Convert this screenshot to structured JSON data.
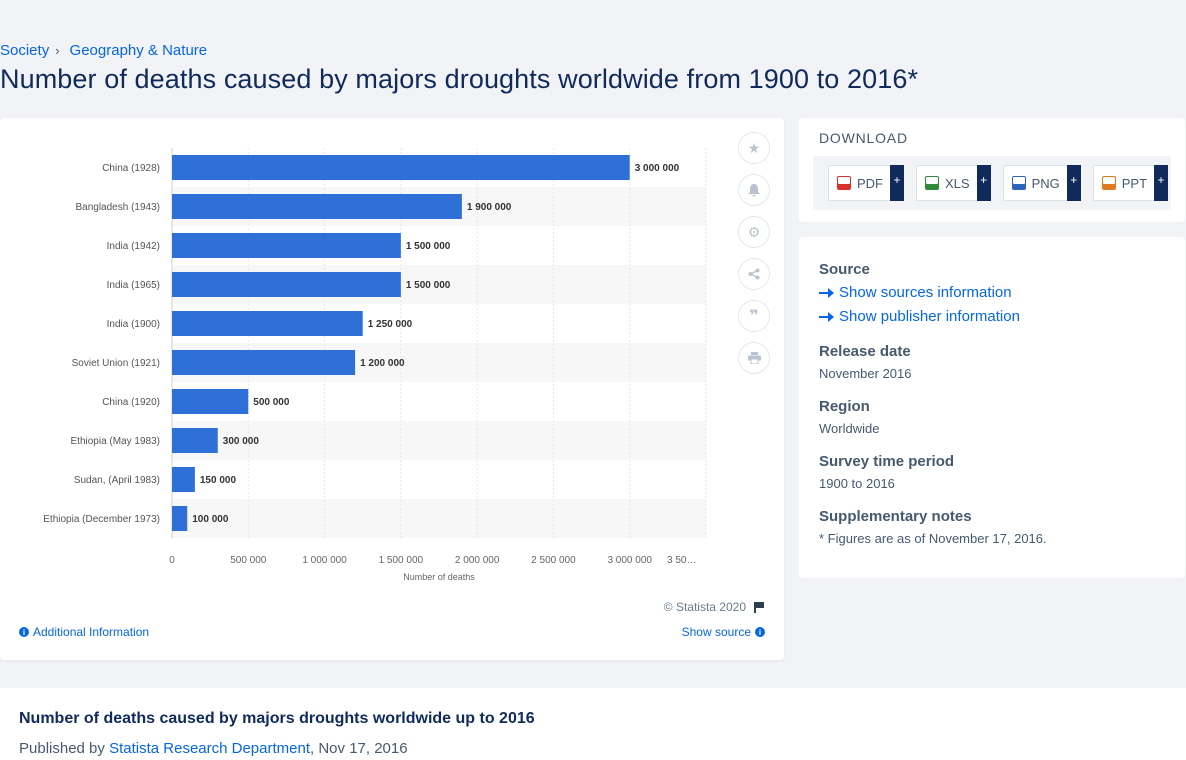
{
  "breadcrumb": {
    "item1": "Society",
    "sep": "›",
    "item2": "Geography & Nature"
  },
  "page_title": "Number of deaths caused by majors droughts worldwide from 1900 to 2016*",
  "chart_footer": {
    "copyright": "© Statista 2020",
    "additional_info": "Additional Information",
    "show_source": "Show source"
  },
  "download": {
    "title": "DOWNLOAD",
    "buttons": [
      {
        "label": "PDF",
        "color": "#d9322b"
      },
      {
        "label": "XLS",
        "color": "#2e8b3a"
      },
      {
        "label": "PNG",
        "color": "#2d63b8"
      },
      {
        "label": "PPT",
        "color": "#e07a1f"
      }
    ],
    "plus": "+"
  },
  "details": {
    "source_label": "Source",
    "show_sources": "Show sources information",
    "show_publisher": "Show publisher information",
    "release_label": "Release date",
    "release_value": "November 2016",
    "region_label": "Region",
    "region_value": "Worldwide",
    "survey_label": "Survey time period",
    "survey_value": "1900 to 2016",
    "notes_label": "Supplementary notes",
    "notes_value": "* Figures are as of November 17, 2016."
  },
  "publication": {
    "title": "Number of deaths caused by majors droughts worldwide up to 2016",
    "published_by": "Published by",
    "publisher": "Statista Research Department",
    "date": ", Nov 17, 2016"
  },
  "colors": {
    "bar": "#2f6fd8",
    "link": "#0666e5",
    "title": "#0f2a5b"
  },
  "chart_data": {
    "type": "bar",
    "orientation": "horizontal",
    "categories": [
      "China (1928)",
      "Bangladesh (1943)",
      "India (1942)",
      "India (1965)",
      "India (1900)",
      "Soviet Union (1921)",
      "China (1920)",
      "Ethiopia (May 1983)",
      "Sudan, (April 1983)",
      "Ethiopia (December 1973)"
    ],
    "values": [
      3000000,
      1900000,
      1500000,
      1500000,
      1250000,
      1200000,
      500000,
      300000,
      150000,
      100000
    ],
    "value_labels": [
      "3 000 000",
      "1 900 000",
      "1 500 000",
      "1 500 000",
      "1 250 000",
      "1 200 000",
      "500 000",
      "300 000",
      "150 000",
      "100 000"
    ],
    "xlabel": "Number of deaths",
    "xlim": [
      0,
      3500000
    ],
    "xticks": [
      0,
      500000,
      1000000,
      1500000,
      2000000,
      2500000,
      3000000,
      3500000
    ],
    "xtick_labels": [
      "0",
      "500 000",
      "1 000 000",
      "1 500 000",
      "2 000 000",
      "2 500 000",
      "3 000 000",
      "3 50…"
    ],
    "grid": true
  }
}
